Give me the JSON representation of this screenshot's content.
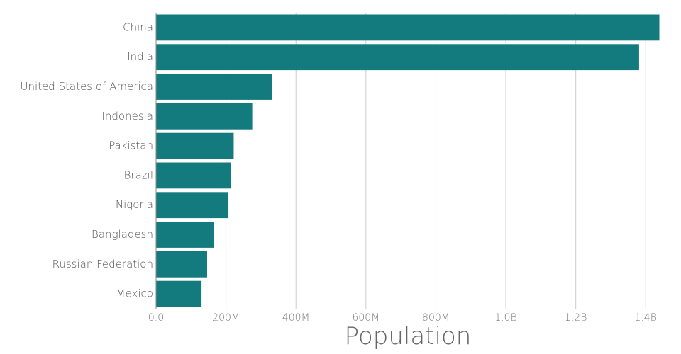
{
  "chart_data": {
    "type": "bar",
    "orientation": "horizontal",
    "categories": [
      "China",
      "India",
      "United States of America",
      "Indonesia",
      "Pakistan",
      "Brazil",
      "Nigeria",
      "Bangladesh",
      "Russian Federation",
      "Mexico"
    ],
    "values": [
      1439000000,
      1381000000,
      332000000,
      275000000,
      222000000,
      213000000,
      207000000,
      166000000,
      146000000,
      130000000
    ],
    "xlabel": "Population",
    "ylabel": "",
    "xlim": [
      0,
      1440000000
    ],
    "x_ticks": [
      0,
      200000000,
      400000000,
      600000000,
      800000000,
      1000000000,
      1200000000,
      1400000000
    ],
    "x_tick_labels": [
      "0.0",
      "200M",
      "400M",
      "600M",
      "800M",
      "1.0B",
      "1.2B",
      "1.4B"
    ],
    "grid": "vertical",
    "bar_color": "#137b7d",
    "grid_color": "#cccccc",
    "axis_color": "#888888"
  }
}
